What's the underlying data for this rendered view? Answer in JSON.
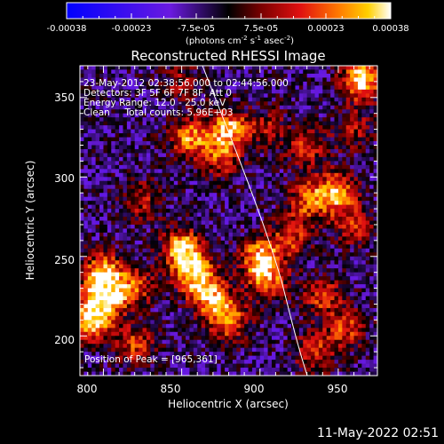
{
  "chart_data": {
    "type": "heatmap",
    "title": "Reconstructed RHESSI Image",
    "xlabel": "Heliocentric X (arcsec)",
    "ylabel": "Heliocentric Y (arcsec)",
    "xlim": [
      785,
      975
    ],
    "ylim": [
      175,
      370
    ],
    "x_ticks": [
      "800",
      "850",
      "900",
      "950"
    ],
    "y_ticks": [
      "200",
      "250",
      "300",
      "350"
    ],
    "annotations": [
      "23-May-2012 02:38:56.000 to 02:44:56.000",
      "Detectors: 3F 5F 6F 7F 8F, Att 0",
      "Energy Range: 12.0 - 25.0 keV",
      "Clean     Total counts: 5.96E+03"
    ],
    "peak_label": "Position of Peak = [965,361]",
    "colorbar": {
      "ticks": [
        "-0.00038",
        "-0.00023",
        "-7.5e-05",
        "7.5e-05",
        "0.00023",
        "0.00038"
      ],
      "range": [
        -0.00038,
        0.00038
      ],
      "unit_text": "(photons cm",
      "unit_sup1": "-2",
      "unit_mid": " s",
      "unit_sup2": "-1",
      "unit_end": " asec",
      "unit_sup3": "-2",
      "unit_close": ")"
    },
    "blobs": [
      {
        "x": 965,
        "y": 361,
        "value": 1.0
      },
      {
        "x": 880,
        "y": 330,
        "value": 0.85
      },
      {
        "x": 855,
        "y": 325,
        "value": 0.75
      },
      {
        "x": 875,
        "y": 312,
        "value": 0.55
      },
      {
        "x": 930,
        "y": 318,
        "value": 0.5
      },
      {
        "x": 948,
        "y": 290,
        "value": 0.85
      },
      {
        "x": 930,
        "y": 285,
        "value": 0.6
      },
      {
        "x": 960,
        "y": 270,
        "value": 0.5
      },
      {
        "x": 850,
        "y": 255,
        "value": 0.9
      },
      {
        "x": 858,
        "y": 240,
        "value": 0.85
      },
      {
        "x": 868,
        "y": 225,
        "value": 0.8
      },
      {
        "x": 880,
        "y": 210,
        "value": 0.75
      },
      {
        "x": 900,
        "y": 250,
        "value": 0.8
      },
      {
        "x": 905,
        "y": 235,
        "value": 0.7
      },
      {
        "x": 920,
        "y": 262,
        "value": 0.55
      },
      {
        "x": 800,
        "y": 225,
        "value": 0.95
      },
      {
        "x": 793,
        "y": 210,
        "value": 0.95
      },
      {
        "x": 800,
        "y": 240,
        "value": 0.8
      },
      {
        "x": 820,
        "y": 230,
        "value": 0.6
      },
      {
        "x": 820,
        "y": 195,
        "value": 0.55
      },
      {
        "x": 940,
        "y": 225,
        "value": 0.55
      },
      {
        "x": 955,
        "y": 205,
        "value": 0.55
      },
      {
        "x": 935,
        "y": 190,
        "value": 0.55
      },
      {
        "x": 825,
        "y": 285,
        "value": 0.45
      },
      {
        "x": 960,
        "y": 330,
        "value": 0.4
      },
      {
        "x": 850,
        "y": 360,
        "value": 0.35
      },
      {
        "x": 905,
        "y": 330,
        "value": 0.4
      }
    ]
  },
  "timestamp": "11-May-2022 02:51"
}
